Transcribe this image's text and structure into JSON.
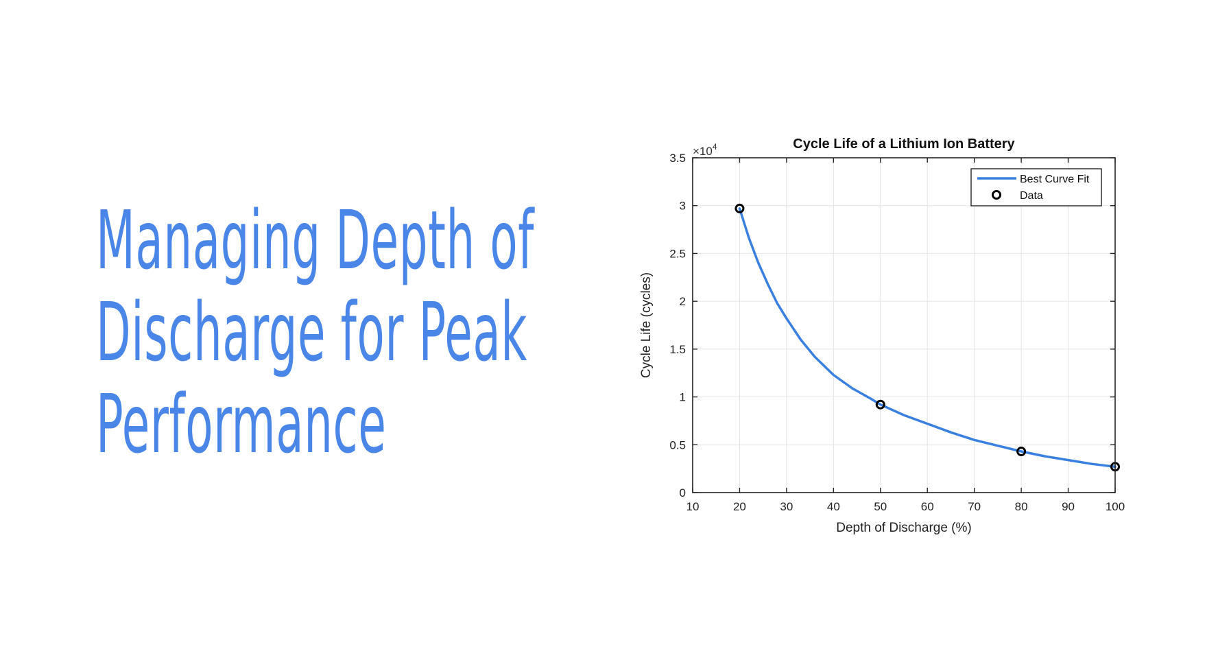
{
  "headline": {
    "lines": [
      "Managing Depth of",
      "Discharge for Peak",
      "Performance"
    ],
    "color": "#4a86e8"
  },
  "chart_data": {
    "type": "line",
    "title": "Cycle Life of a Lithium Ion Battery",
    "xlabel": "Depth of Discharge (%)",
    "ylabel": "Cycle Life (cycles)",
    "exponent_label": "×10",
    "exponent_power": "4",
    "xlim": [
      10,
      100
    ],
    "ylim": [
      0,
      35000
    ],
    "x_ticks": [
      10,
      20,
      30,
      40,
      50,
      60,
      70,
      80,
      90,
      100
    ],
    "x_tick_labels": [
      "10",
      "20",
      "30",
      "40",
      "50",
      "60",
      "70",
      "80",
      "90",
      "100"
    ],
    "y_ticks": [
      0,
      5000,
      10000,
      15000,
      20000,
      25000,
      30000,
      35000
    ],
    "y_tick_labels": [
      "0",
      "0.5",
      "1",
      "1.5",
      "2",
      "2.5",
      "3",
      "3.5"
    ],
    "grid": true,
    "legend_position": "top-right",
    "series": [
      {
        "name": "Best Curve Fit",
        "kind": "line",
        "color": "#3a80e0",
        "x": [
          20,
          22,
          24,
          26,
          28,
          30,
          33,
          36,
          40,
          44,
          48,
          50,
          55,
          60,
          65,
          70,
          75,
          80,
          85,
          90,
          95,
          100
        ],
        "y": [
          29700,
          26600,
          24000,
          21800,
          19800,
          18200,
          16000,
          14200,
          12300,
          10900,
          9800,
          9200,
          8100,
          7200,
          6300,
          5500,
          4900,
          4300,
          3800,
          3400,
          3000,
          2700
        ]
      },
      {
        "name": "Data",
        "kind": "scatter",
        "color": "#000000",
        "x": [
          20,
          50,
          80,
          100
        ],
        "y": [
          29700,
          9200,
          4300,
          2700
        ]
      }
    ]
  }
}
